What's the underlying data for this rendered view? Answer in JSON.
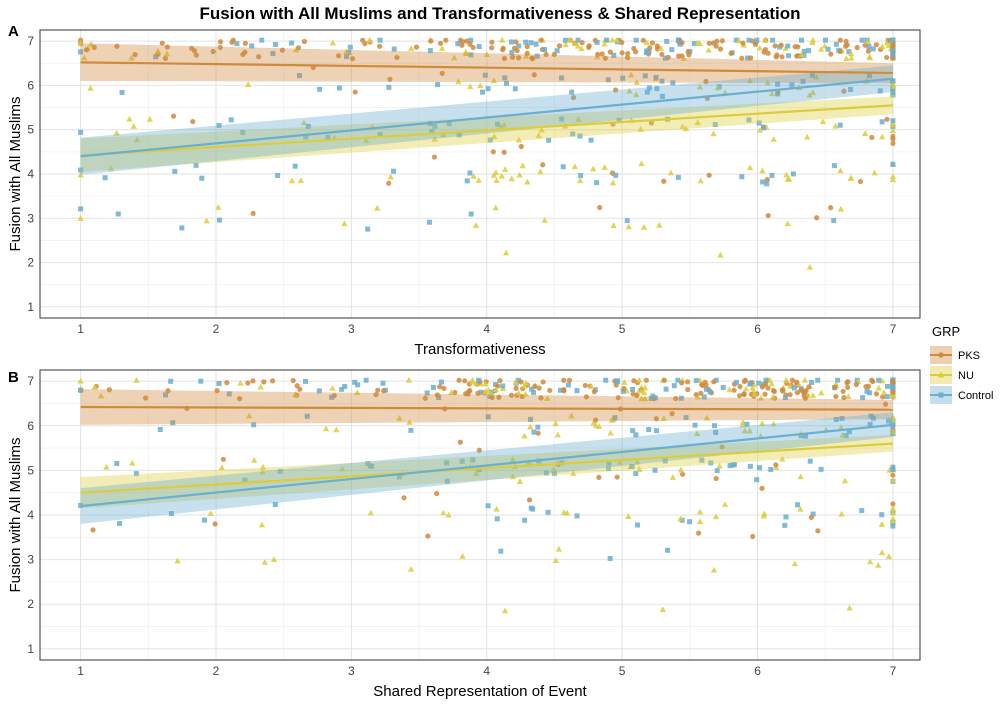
{
  "title": "Fusion with All Muslims and Transformativeness & Shared Representation",
  "legend": {
    "title": "GRP",
    "items": [
      {
        "label": "PKS",
        "color": "#d08a3c",
        "shape": "circle"
      },
      {
        "label": "NU",
        "color": "#dccc3c",
        "shape": "triangle"
      },
      {
        "label": "Control",
        "color": "#6aaed0",
        "shape": "square"
      }
    ]
  },
  "chart_data": [
    {
      "panel": "A",
      "type": "scatter",
      "xlabel": "Transformativeness",
      "ylabel": "Fusion with All Muslims",
      "xlim": [
        0.7,
        7.2
      ],
      "ylim": [
        0.75,
        7.25
      ],
      "xticks": [
        1,
        2,
        3,
        4,
        5,
        6,
        7
      ],
      "yticks": [
        1,
        2,
        3,
        4,
        5,
        6,
        7
      ],
      "grid": true,
      "series": [
        {
          "name": "PKS",
          "fit": {
            "x": [
              1,
              7
            ],
            "y": [
              6.52,
              6.28
            ],
            "lower": [
              6.1,
              6.05
            ],
            "upper": [
              6.95,
              6.5
            ]
          }
        },
        {
          "name": "NU",
          "fit": {
            "x": [
              1,
              7
            ],
            "y": [
              4.42,
              5.55
            ],
            "lower": [
              4.05,
              5.35
            ],
            "upper": [
              4.8,
              5.75
            ]
          }
        },
        {
          "name": "Control",
          "fit": {
            "x": [
              1,
              7
            ],
            "y": [
              4.4,
              6.15
            ],
            "lower": [
              3.98,
              5.85
            ],
            "upper": [
              4.82,
              6.45
            ]
          }
        }
      ]
    },
    {
      "panel": "B",
      "type": "scatter",
      "xlabel": "Shared Representation of Event",
      "ylabel": "Fusion with All Muslims",
      "xlim": [
        0.7,
        7.2
      ],
      "ylim": [
        0.75,
        7.25
      ],
      "xticks": [
        1,
        2,
        3,
        4,
        5,
        6,
        7
      ],
      "yticks": [
        1,
        2,
        3,
        4,
        5,
        6,
        7
      ],
      "grid": true,
      "series": [
        {
          "name": "PKS",
          "fit": {
            "x": [
              1,
              7
            ],
            "y": [
              6.42,
              6.36
            ],
            "lower": [
              6.02,
              6.15
            ],
            "upper": [
              6.82,
              6.58
            ]
          }
        },
        {
          "name": "NU",
          "fit": {
            "x": [
              1,
              7
            ],
            "y": [
              4.5,
              5.6
            ],
            "lower": [
              4.15,
              5.42
            ],
            "upper": [
              4.85,
              5.8
            ]
          }
        },
        {
          "name": "Control",
          "fit": {
            "x": [
              1,
              7
            ],
            "y": [
              4.2,
              6.02
            ],
            "lower": [
              3.8,
              5.75
            ],
            "upper": [
              4.6,
              6.3
            ]
          }
        }
      ]
    }
  ]
}
